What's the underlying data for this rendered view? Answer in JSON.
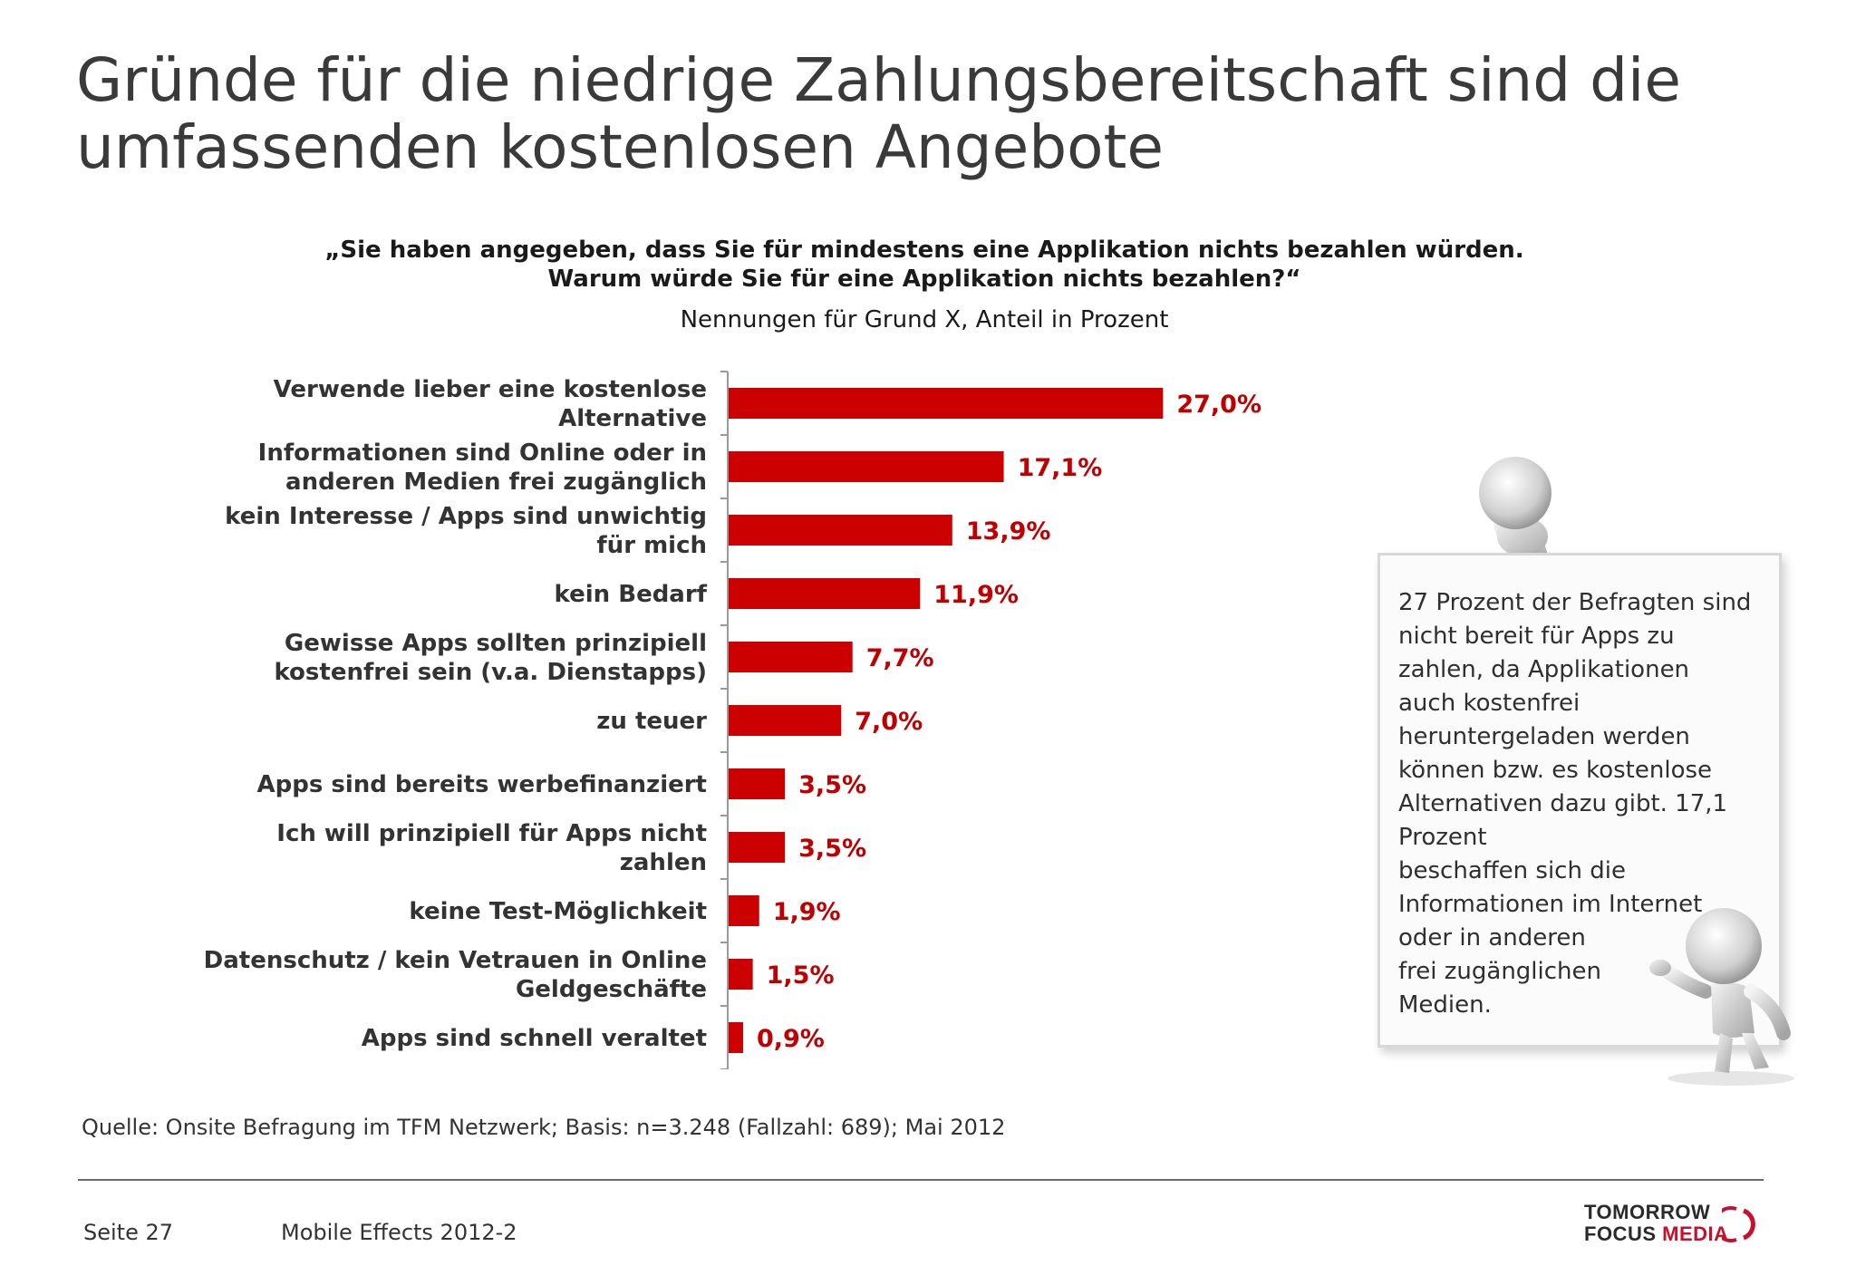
{
  "title": {
    "line1": "Gründe für die niedrige Zahlungsbereitschaft sind die",
    "line2": "umfassenden kostenlosen Angebote"
  },
  "question": {
    "line1": "„Sie haben angegeben, dass Sie für mindestens eine Applikation nichts bezahlen würden.",
    "line2": "Warum würde Sie für eine Applikation nichts bezahlen?“"
  },
  "subtitle": "Nennungen für Grund X, Anteil in Prozent",
  "chart_data": {
    "type": "bar",
    "orientation": "horizontal",
    "categories": [
      [
        "Verwende lieber eine kostenlose",
        "Alternative"
      ],
      [
        "Informationen sind Online oder in",
        "anderen Medien frei zugänglich"
      ],
      [
        "kein Interesse / Apps sind unwichtig",
        "für mich"
      ],
      [
        "kein Bedarf"
      ],
      [
        "Gewisse Apps sollten prinzipiell",
        "kostenfrei sein (v.a. Dienstapps)"
      ],
      [
        "zu teuer"
      ],
      [
        "Apps sind bereits werbefinanziert"
      ],
      [
        "Ich will prinzipiell für Apps nicht",
        "zahlen"
      ],
      [
        "keine Test-Möglichkeit"
      ],
      [
        "Datenschutz / kein Vetrauen in Online",
        "Geldgeschäfte"
      ],
      [
        "Apps sind schnell veraltet"
      ]
    ],
    "values": [
      27.0,
      17.1,
      13.9,
      11.9,
      7.7,
      7.0,
      3.5,
      3.5,
      1.9,
      1.5,
      0.9
    ],
    "data_labels": [
      "27,0%",
      "17,1%",
      "13,9%",
      "11,9%",
      "7,7%",
      "7,0%",
      "3,5%",
      "3,5%",
      "1,9%",
      "1,5%",
      "0,9%"
    ],
    "xlim": [
      0,
      30
    ],
    "grid": false,
    "bar_color": "#cc0000",
    "label_color": "#c00000"
  },
  "note": {
    "text": "27 Prozent der Befragten sind\nnicht bereit für Apps zu\nzahlen, da Applikationen\nauch kostenfrei\nheruntergeladen werden\nkönnen  bzw. es kostenlose\nAlternativen dazu gibt. 17,1\nProzent\nbeschaffen sich die\nInformationen im Internet\noder in  anderen\nfrei zugänglichen\nMedien."
  },
  "source": "Quelle: Onsite Befragung im TFM Netzwerk; Basis: n=3.248 (Fallzahl: 689); Mai 2012",
  "footer": {
    "page": "Seite 27",
    "document": "Mobile Effects 2012-2"
  },
  "logo": {
    "line1": "TOMORROW",
    "line2a": "FOCUS ",
    "line2b": "MEDIA",
    "accent": "#c8102e"
  }
}
